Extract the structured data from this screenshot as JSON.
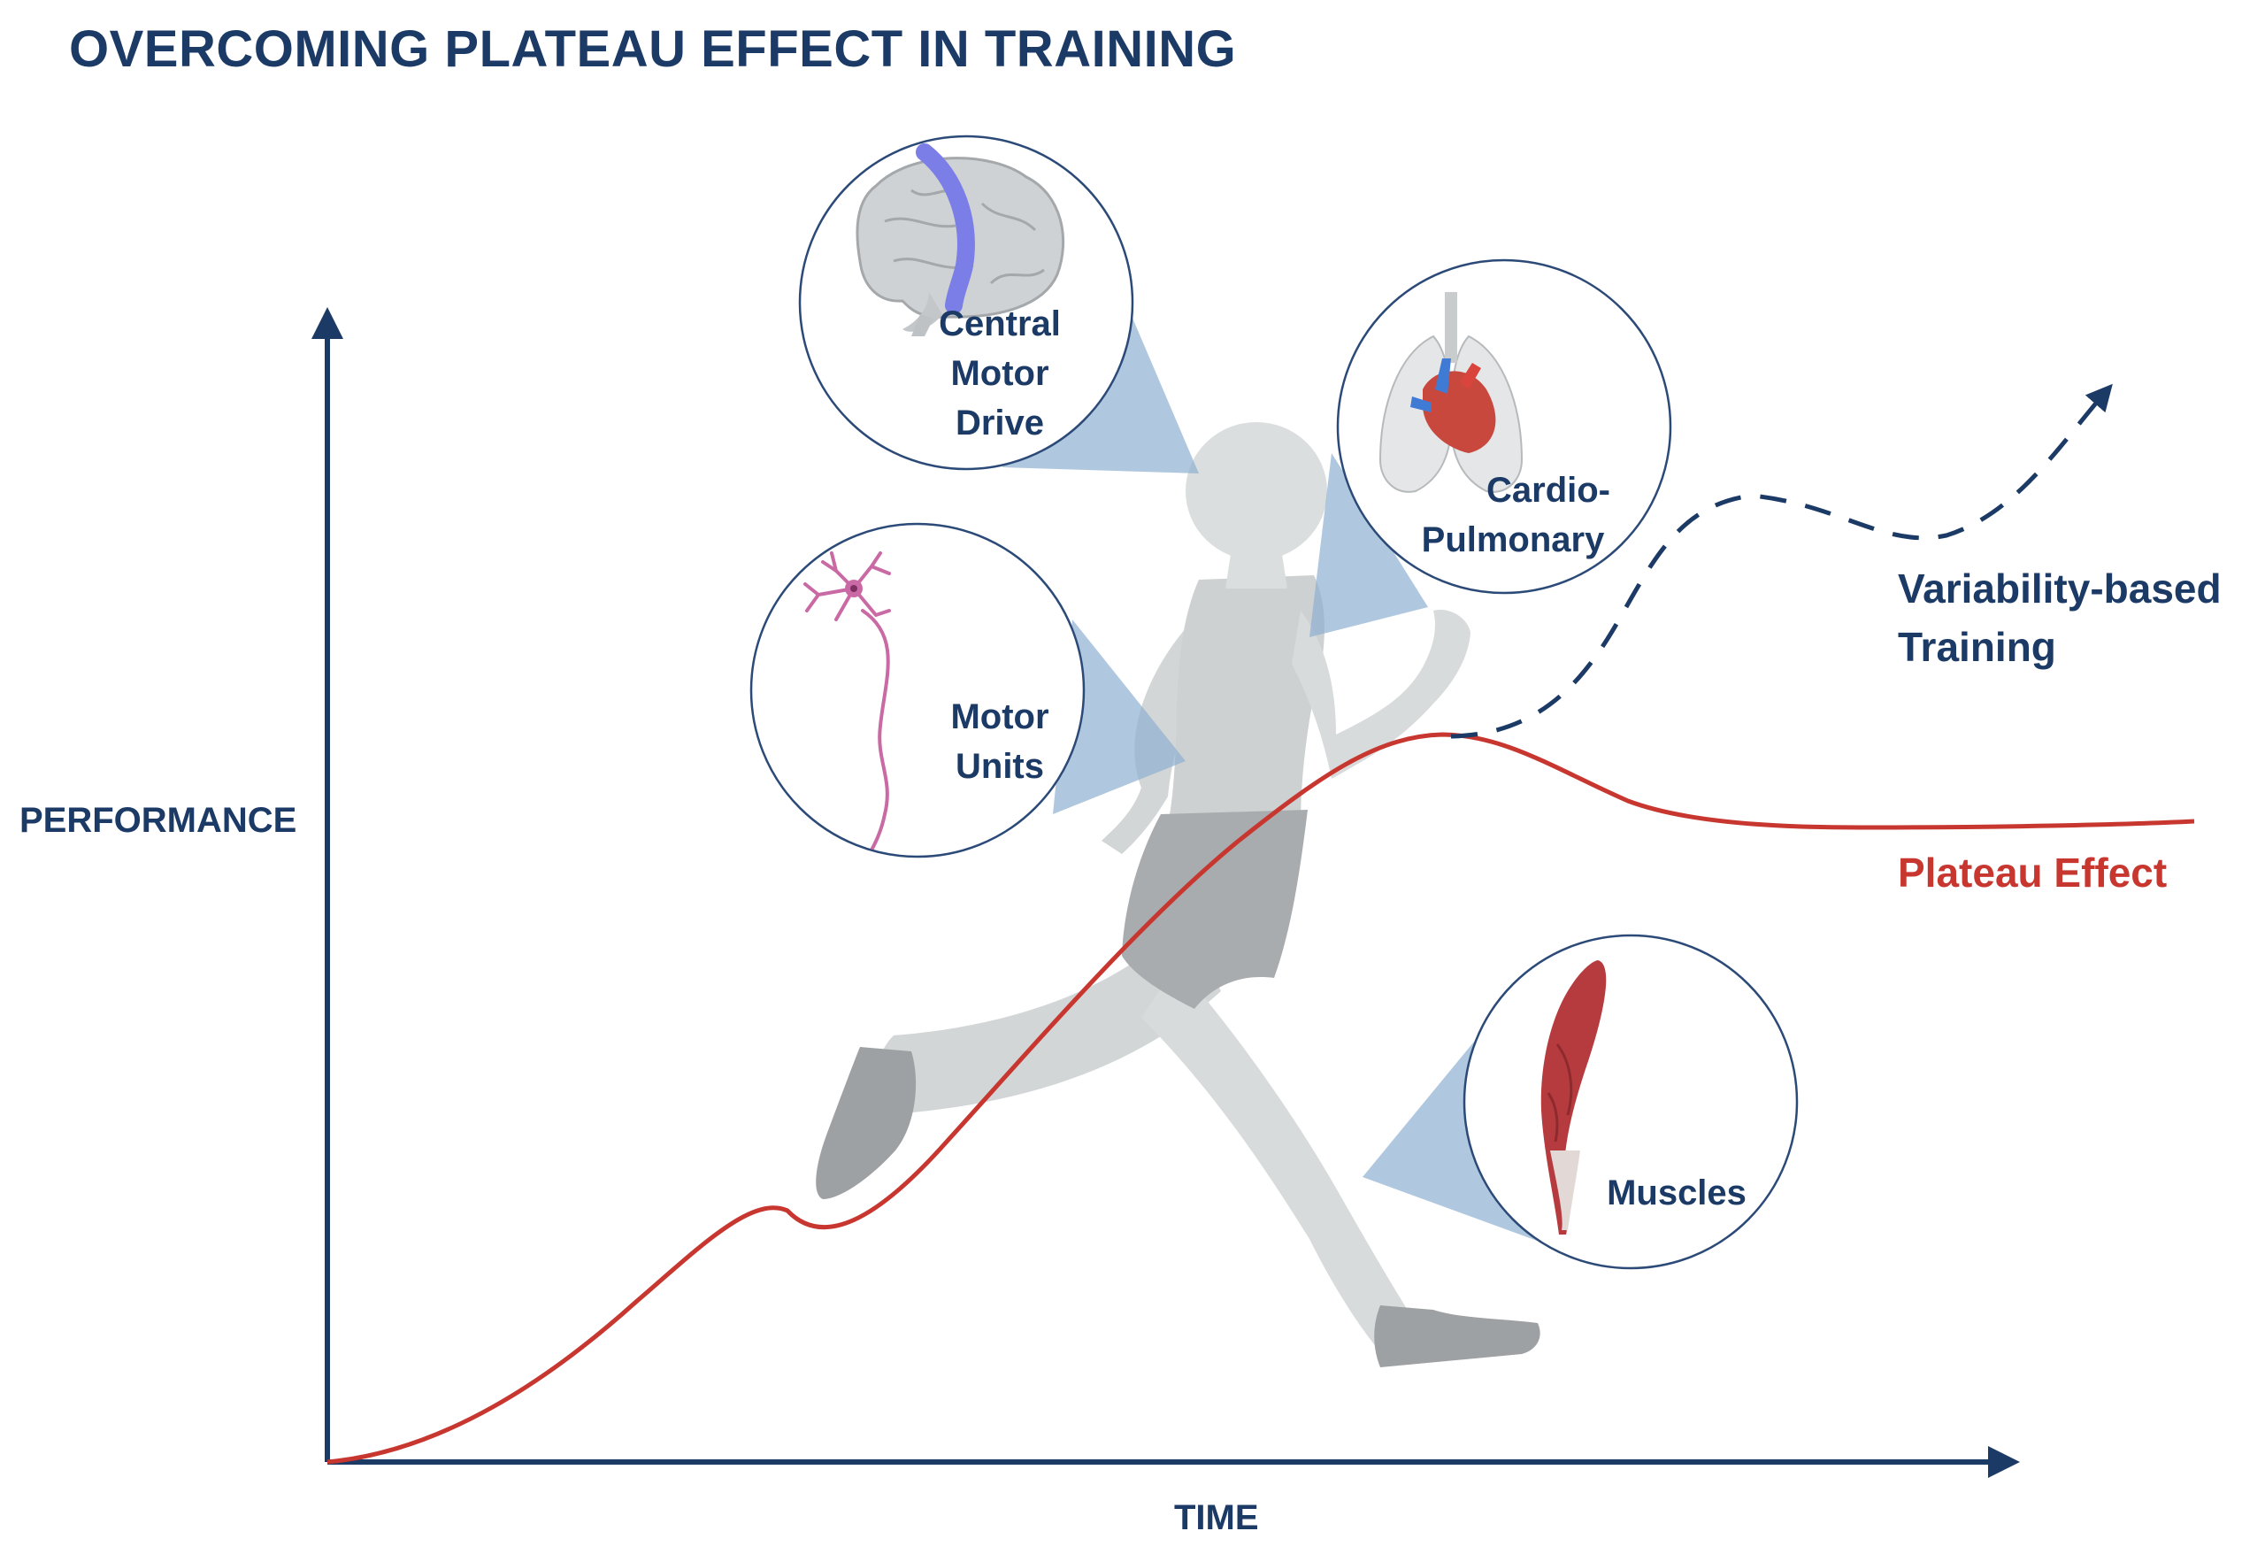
{
  "title": "OVERCOMING PLATEAU EFFECT IN TRAINING",
  "axes": {
    "y_label": "PERFORMANCE",
    "x_label": "TIME"
  },
  "insets": {
    "brain": {
      "icon": "brain-icon",
      "lines": [
        "Central",
        "Motor",
        "Drive"
      ]
    },
    "lungs": {
      "icon": "heart-lungs-icon",
      "lines": [
        "Cardio-",
        "Pulmonary"
      ]
    },
    "neuron": {
      "icon": "neuron-icon",
      "lines": [
        "Motor",
        "Units"
      ]
    },
    "muscle": {
      "icon": "muscle-icon",
      "lines": [
        "Muscles"
      ]
    }
  },
  "curves": {
    "variability": {
      "lines": [
        "Variability-based",
        "Training"
      ]
    },
    "plateau": {
      "label": "Plateau Effect"
    }
  },
  "figure": {
    "icon": "runner-silhouette"
  },
  "colors": {
    "navy": "#1b3a66",
    "red": "#c8372f",
    "silhouette": "#dadede",
    "shoe": "#9ea1a3",
    "shorts": "#a9acae",
    "cone": "#8fb0d2",
    "brain_band": "#7b7ee6",
    "muscle": "#b63b3e",
    "neuron": "#c96aa4"
  }
}
